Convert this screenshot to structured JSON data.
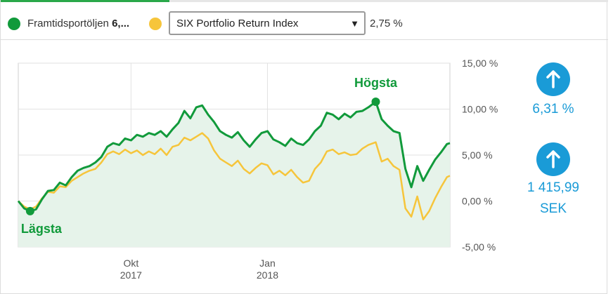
{
  "legend": {
    "portfolio_label": "Framtidsportöljen",
    "portfolio_value": "6,...",
    "portfolio_color": "#119a3b",
    "index_color": "#f6c53b",
    "index_select_value": "SIX Portfolio Return Index",
    "index_value": "2,75 %",
    "dropdown_icon": "caret-down-icon"
  },
  "stats": {
    "return_icon": "arrow-up-icon",
    "return_value": "6,31 %",
    "amount_icon": "arrow-up-icon",
    "amount_value": "1 415,99",
    "amount_unit": "SEK"
  },
  "chart_data": {
    "type": "line",
    "x_start": "2017-07-17",
    "x_end": "2018-05-04",
    "ylim": [
      -5,
      15
    ],
    "yticks": [
      15,
      10,
      5,
      0,
      -5
    ],
    "ytick_labels": [
      "15,00 %",
      "10,00 %",
      "5,00 %",
      "0,00 %",
      "-5,00 %"
    ],
    "xticks": [
      {
        "x": "2017-10-01",
        "label": "Okt",
        "label2": "2017"
      },
      {
        "x": "2018-01-01",
        "label": "Jan",
        "label2": "2018"
      }
    ],
    "grid": true,
    "annotations": [
      {
        "text": "Högsta",
        "x": "2018-03-15",
        "y": 10.8,
        "position": "above"
      },
      {
        "text": "Lägsta",
        "x": "2017-07-25",
        "y": -1.1,
        "position": "below"
      }
    ],
    "series": [
      {
        "name": "Framtidsportöljen",
        "color": "#119a3b",
        "fill": true,
        "points": [
          [
            "2017-07-17",
            0.0
          ],
          [
            "2017-07-21",
            -0.8
          ],
          [
            "2017-07-25",
            -1.1
          ],
          [
            "2017-07-29",
            -0.9
          ],
          [
            "2017-08-02",
            0.2
          ],
          [
            "2017-08-06",
            1.1
          ],
          [
            "2017-08-10",
            1.2
          ],
          [
            "2017-08-14",
            2.0
          ],
          [
            "2017-08-18",
            1.7
          ],
          [
            "2017-08-22",
            2.6
          ],
          [
            "2017-08-26",
            3.3
          ],
          [
            "2017-08-30",
            3.6
          ],
          [
            "2017-09-03",
            3.8
          ],
          [
            "2017-09-07",
            4.2
          ],
          [
            "2017-09-11",
            4.8
          ],
          [
            "2017-09-15",
            5.9
          ],
          [
            "2017-09-19",
            6.3
          ],
          [
            "2017-09-23",
            6.1
          ],
          [
            "2017-09-27",
            6.8
          ],
          [
            "2017-10-01",
            6.6
          ],
          [
            "2017-10-05",
            7.2
          ],
          [
            "2017-10-09",
            7.0
          ],
          [
            "2017-10-13",
            7.4
          ],
          [
            "2017-10-17",
            7.2
          ],
          [
            "2017-10-21",
            7.6
          ],
          [
            "2017-10-25",
            7.0
          ],
          [
            "2017-10-29",
            7.8
          ],
          [
            "2017-11-02",
            8.5
          ],
          [
            "2017-11-06",
            9.8
          ],
          [
            "2017-11-10",
            9.0
          ],
          [
            "2017-11-14",
            10.2
          ],
          [
            "2017-11-18",
            10.4
          ],
          [
            "2017-11-22",
            9.4
          ],
          [
            "2017-11-26",
            8.6
          ],
          [
            "2017-11-30",
            7.6
          ],
          [
            "2017-12-04",
            7.2
          ],
          [
            "2017-12-08",
            6.9
          ],
          [
            "2017-12-12",
            7.5
          ],
          [
            "2017-12-16",
            6.6
          ],
          [
            "2017-12-20",
            5.9
          ],
          [
            "2017-12-24",
            6.7
          ],
          [
            "2017-12-28",
            7.4
          ],
          [
            "2018-01-01",
            7.6
          ],
          [
            "2018-01-05",
            6.7
          ],
          [
            "2018-01-09",
            6.4
          ],
          [
            "2018-01-13",
            6.0
          ],
          [
            "2018-01-17",
            6.8
          ],
          [
            "2018-01-21",
            6.3
          ],
          [
            "2018-01-25",
            6.1
          ],
          [
            "2018-01-29",
            6.7
          ],
          [
            "2018-02-02",
            7.6
          ],
          [
            "2018-02-06",
            8.2
          ],
          [
            "2018-02-10",
            9.6
          ],
          [
            "2018-02-14",
            9.4
          ],
          [
            "2018-02-18",
            8.9
          ],
          [
            "2018-02-22",
            9.5
          ],
          [
            "2018-02-26",
            9.1
          ],
          [
            "2018-03-02",
            9.7
          ],
          [
            "2018-03-06",
            9.8
          ],
          [
            "2018-03-10",
            10.2
          ],
          [
            "2018-03-15",
            10.8
          ],
          [
            "2018-03-19",
            8.9
          ],
          [
            "2018-03-23",
            8.2
          ],
          [
            "2018-03-27",
            7.6
          ],
          [
            "2018-03-31",
            7.4
          ],
          [
            "2018-04-04",
            3.5
          ],
          [
            "2018-04-08",
            1.5
          ],
          [
            "2018-04-12",
            3.8
          ],
          [
            "2018-04-16",
            2.2
          ],
          [
            "2018-04-20",
            3.4
          ],
          [
            "2018-04-24",
            4.5
          ],
          [
            "2018-04-28",
            5.3
          ],
          [
            "2018-05-02",
            6.2
          ],
          [
            "2018-05-04",
            6.3
          ]
        ]
      },
      {
        "name": "SIX Portfolio Return Index",
        "color": "#f6c53b",
        "fill": false,
        "points": [
          [
            "2017-07-17",
            0.0
          ],
          [
            "2017-07-21",
            -0.6
          ],
          [
            "2017-07-25",
            -0.9
          ],
          [
            "2017-07-29",
            -0.6
          ],
          [
            "2017-08-02",
            0.3
          ],
          [
            "2017-08-06",
            1.0
          ],
          [
            "2017-08-10",
            0.9
          ],
          [
            "2017-08-14",
            1.6
          ],
          [
            "2017-08-18",
            1.5
          ],
          [
            "2017-08-22",
            2.2
          ],
          [
            "2017-08-26",
            2.6
          ],
          [
            "2017-08-30",
            3.0
          ],
          [
            "2017-09-03",
            3.3
          ],
          [
            "2017-09-07",
            3.5
          ],
          [
            "2017-09-11",
            4.2
          ],
          [
            "2017-09-15",
            5.1
          ],
          [
            "2017-09-19",
            5.4
          ],
          [
            "2017-09-23",
            5.1
          ],
          [
            "2017-09-27",
            5.6
          ],
          [
            "2017-10-01",
            5.2
          ],
          [
            "2017-10-05",
            5.5
          ],
          [
            "2017-10-09",
            5.0
          ],
          [
            "2017-10-13",
            5.4
          ],
          [
            "2017-10-17",
            5.1
          ],
          [
            "2017-10-21",
            5.7
          ],
          [
            "2017-10-25",
            5.0
          ],
          [
            "2017-10-29",
            5.9
          ],
          [
            "2017-11-02",
            6.1
          ],
          [
            "2017-11-06",
            6.9
          ],
          [
            "2017-11-10",
            6.6
          ],
          [
            "2017-11-14",
            7.0
          ],
          [
            "2017-11-18",
            7.4
          ],
          [
            "2017-11-22",
            6.8
          ],
          [
            "2017-11-26",
            5.5
          ],
          [
            "2017-11-30",
            4.6
          ],
          [
            "2017-12-04",
            4.2
          ],
          [
            "2017-12-08",
            3.8
          ],
          [
            "2017-12-12",
            4.4
          ],
          [
            "2017-12-16",
            3.5
          ],
          [
            "2017-12-20",
            3.0
          ],
          [
            "2017-12-24",
            3.6
          ],
          [
            "2017-12-28",
            4.1
          ],
          [
            "2018-01-01",
            3.9
          ],
          [
            "2018-01-05",
            2.9
          ],
          [
            "2018-01-09",
            3.3
          ],
          [
            "2018-01-13",
            2.8
          ],
          [
            "2018-01-17",
            3.4
          ],
          [
            "2018-01-21",
            2.6
          ],
          [
            "2018-01-25",
            2.0
          ],
          [
            "2018-01-29",
            2.2
          ],
          [
            "2018-02-02",
            3.5
          ],
          [
            "2018-02-06",
            4.2
          ],
          [
            "2018-02-10",
            5.4
          ],
          [
            "2018-02-14",
            5.6
          ],
          [
            "2018-02-18",
            5.1
          ],
          [
            "2018-02-22",
            5.3
          ],
          [
            "2018-02-26",
            5.0
          ],
          [
            "2018-03-02",
            5.1
          ],
          [
            "2018-03-06",
            5.7
          ],
          [
            "2018-03-10",
            6.1
          ],
          [
            "2018-03-15",
            6.4
          ],
          [
            "2018-03-19",
            4.3
          ],
          [
            "2018-03-23",
            4.6
          ],
          [
            "2018-03-27",
            3.8
          ],
          [
            "2018-03-31",
            3.4
          ],
          [
            "2018-04-04",
            -0.8
          ],
          [
            "2018-04-08",
            -1.7
          ],
          [
            "2018-04-12",
            0.5
          ],
          [
            "2018-04-16",
            -2.0
          ],
          [
            "2018-04-20",
            -1.1
          ],
          [
            "2018-04-24",
            0.3
          ],
          [
            "2018-04-28",
            1.5
          ],
          [
            "2018-05-02",
            2.6
          ],
          [
            "2018-05-04",
            2.75
          ]
        ]
      }
    ]
  }
}
